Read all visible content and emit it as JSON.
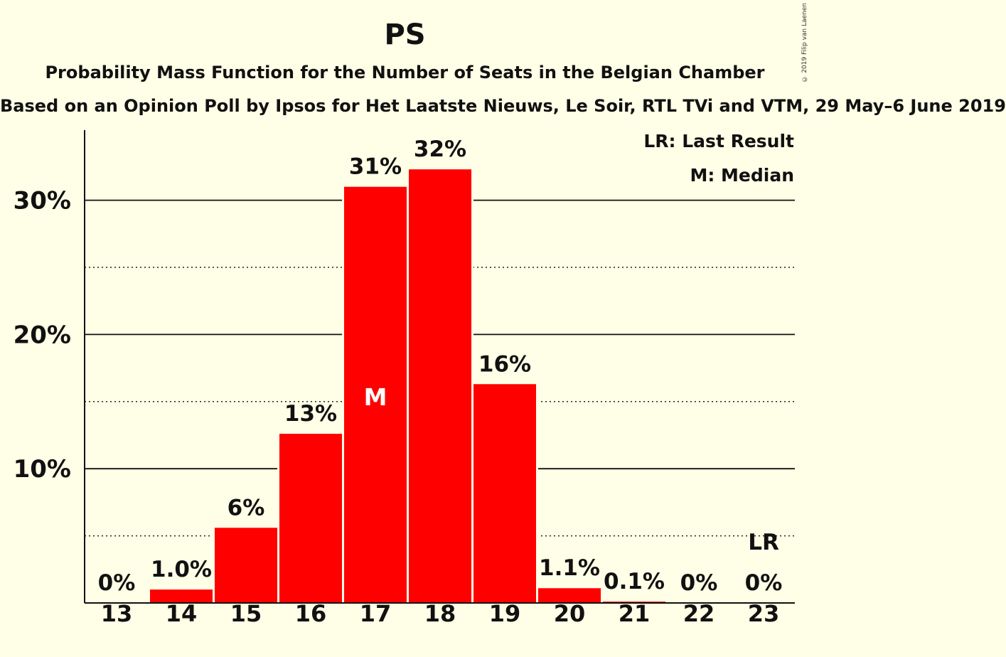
{
  "title": "PS",
  "subtitle": "Probability Mass Function for the Number of Seats in the Belgian Chamber",
  "source": "Based on an Opinion Poll by Ipsos for Het Laatste Nieuws, Le Soir, RTL TVi and VTM, 29 May–6 June 2019",
  "credit": "© 2019 Filip van Laenen",
  "legend": {
    "last_result": "LR: Last Result",
    "median": "M: Median"
  },
  "colors": {
    "bar": "#FF0000",
    "background": "#FFFEE6",
    "text": "#111111"
  },
  "chart_data": {
    "type": "bar",
    "categories": [
      "13",
      "14",
      "15",
      "16",
      "17",
      "18",
      "19",
      "20",
      "21",
      "22",
      "23"
    ],
    "values": [
      0,
      1.0,
      5.6,
      12.6,
      31.0,
      32.3,
      16.3,
      1.1,
      0.1,
      0,
      0
    ],
    "data_labels": [
      "0%",
      "1.0%",
      "6%",
      "13%",
      "31%",
      "32%",
      "16%",
      "1.1%",
      "0.1%",
      "0%",
      "0%"
    ],
    "ylim": [
      0,
      35
    ],
    "yticks": [
      10,
      20,
      30
    ],
    "ytick_labels": [
      "10%",
      "20%",
      "30%"
    ],
    "minor_gridlines": [
      5,
      15,
      25
    ],
    "median_category": "17",
    "median_marker": "M",
    "last_result_category": "23",
    "last_result_marker": "LR",
    "grid": true
  }
}
